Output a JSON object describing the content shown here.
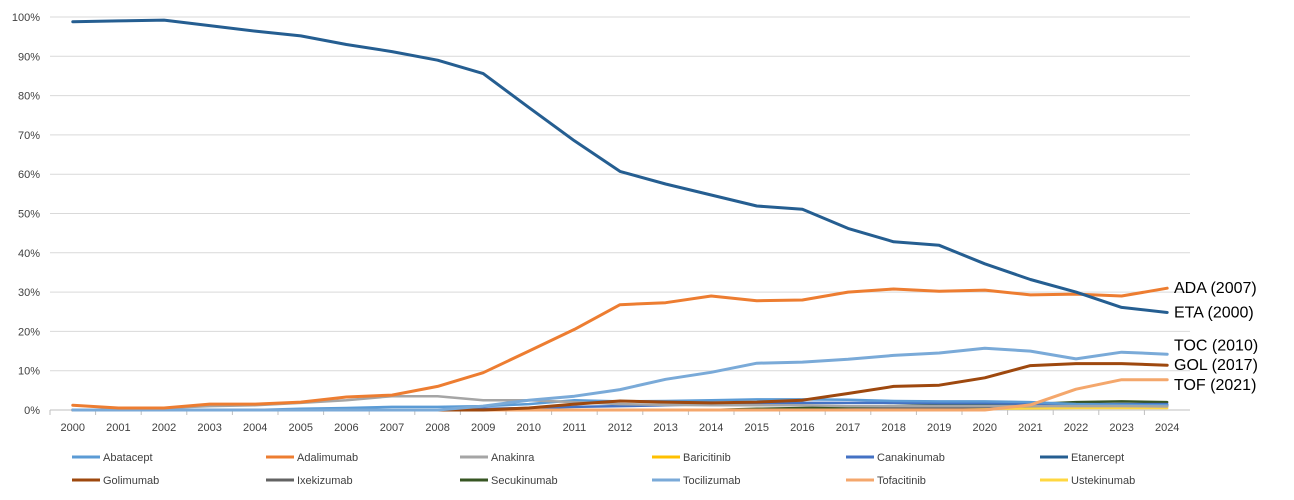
{
  "chart_data": {
    "type": "line",
    "title": "",
    "xlabel": "",
    "ylabel": "",
    "x": [
      "2000",
      "2001",
      "2002",
      "2003",
      "2004",
      "2005",
      "2006",
      "2007",
      "2008",
      "2009",
      "2010",
      "2011",
      "2012",
      "2013",
      "2014",
      "2015",
      "2016",
      "2017",
      "2018",
      "2019",
      "2020",
      "2021",
      "2022",
      "2023",
      "2024"
    ],
    "yticks": [
      "0%",
      "10%",
      "20%",
      "30%",
      "40%",
      "50%",
      "60%",
      "70%",
      "80%",
      "90%",
      "100%"
    ],
    "ylim": [
      0,
      100
    ],
    "grid": true,
    "legend_position": "bottom",
    "series": [
      {
        "name": "Abatacept",
        "color": "#5b9bd5",
        "values": [
          0,
          0,
          0,
          0,
          0,
          0.3,
          0.5,
          0.8,
          0.8,
          1.0,
          1.5,
          2.5,
          2.2,
          2.3,
          2.5,
          2.7,
          2.7,
          2.6,
          2.3,
          2.2,
          2.2,
          2.0,
          1.5,
          1.3,
          1.2
        ]
      },
      {
        "name": "Adalimumab",
        "color": "#ed7d31",
        "values": [
          1.2,
          0.5,
          0.5,
          1.5,
          1.5,
          2.0,
          3.3,
          3.8,
          6.0,
          9.5,
          15.0,
          20.5,
          26.8,
          27.3,
          29.0,
          27.8,
          28.0,
          30.0,
          30.8,
          30.2,
          30.5,
          29.3,
          29.5,
          29.0,
          31.0
        ]
      },
      {
        "name": "Anakinra",
        "color": "#a5a5a5",
        "values": [
          0,
          0,
          0.5,
          1.0,
          1.2,
          1.8,
          2.5,
          3.5,
          3.5,
          2.5,
          2.5,
          2.0,
          1.5,
          1.3,
          1.2,
          1.2,
          1.2,
          1.0,
          1.0,
          1.0,
          1.0,
          1.0,
          1.0,
          1.0,
          0.9
        ]
      },
      {
        "name": "Baricitinib",
        "color": "#ffc000",
        "values": [
          0,
          0,
          0,
          0,
          0,
          0,
          0,
          0,
          0,
          0,
          0,
          0,
          0,
          0,
          0,
          0,
          0,
          0.3,
          0.5,
          0.6,
          0.6,
          0.8,
          1.0,
          1.0,
          1.0
        ]
      },
      {
        "name": "Canakinumab",
        "color": "#4472c4",
        "values": [
          0,
          0,
          0,
          0,
          0,
          0,
          0,
          0,
          0,
          0.3,
          0.5,
          0.8,
          1.0,
          1.2,
          1.5,
          1.5,
          1.8,
          1.8,
          1.8,
          1.7,
          1.7,
          1.6,
          1.5,
          1.5,
          1.5
        ]
      },
      {
        "name": "Etanercept",
        "color": "#255e91",
        "values": [
          98.8,
          99.0,
          99.2,
          97.8,
          96.4,
          95.2,
          93.0,
          91.2,
          89.0,
          85.6,
          77.0,
          68.5,
          60.7,
          57.5,
          54.7,
          51.9,
          51.1,
          46.2,
          42.8,
          41.9,
          37.2,
          33.2,
          30.0,
          26.1,
          24.8
        ]
      },
      {
        "name": "Golimumab",
        "color": "#9e480e",
        "values": [
          0,
          0,
          0,
          0,
          0,
          0,
          0,
          0,
          0,
          0,
          0.5,
          1.5,
          2.3,
          2.0,
          1.8,
          2.0,
          2.5,
          4.2,
          6.0,
          6.3,
          8.2,
          11.3,
          11.8,
          11.8,
          11.4
        ]
      },
      {
        "name": "Ixekizumab",
        "color": "#636363",
        "values": [
          0,
          0,
          0,
          0,
          0,
          0,
          0,
          0,
          0,
          0,
          0,
          0,
          0,
          0,
          0,
          0,
          0,
          0.3,
          0.5,
          0.6,
          0.8,
          1.0,
          1.2,
          1.2,
          1.2
        ]
      },
      {
        "name": "Secukinumab",
        "color": "#375623",
        "values": [
          0,
          0,
          0,
          0,
          0,
          0,
          0,
          0,
          0,
          0,
          0,
          0,
          0,
          0,
          0,
          0.3,
          0.5,
          0.8,
          1.0,
          1.2,
          1.3,
          1.5,
          2.0,
          2.2,
          2.0
        ]
      },
      {
        "name": "Tocilizumab",
        "color": "#7aaad8",
        "values": [
          0,
          0,
          0,
          0,
          0,
          0,
          0,
          0,
          0,
          1.0,
          2.5,
          3.5,
          5.2,
          7.8,
          9.6,
          11.9,
          12.2,
          12.9,
          13.9,
          14.5,
          15.7,
          15.0,
          13.0,
          14.7,
          14.2
        ]
      },
      {
        "name": "Tofacitinib",
        "color": "#f4a76c",
        "values": [
          0,
          0,
          0,
          0,
          0,
          0,
          0,
          0,
          0,
          0,
          0,
          0,
          0,
          0,
          0,
          0,
          0,
          0,
          0,
          0,
          0,
          1.3,
          5.3,
          7.7,
          7.7
        ]
      },
      {
        "name": "Ustekinumab",
        "color": "#ffd740",
        "values": [
          0,
          0,
          0,
          0,
          0,
          0,
          0,
          0,
          0,
          0,
          0,
          0,
          0,
          0,
          0,
          0,
          0,
          0,
          0.2,
          0.3,
          0.3,
          0.4,
          0.5,
          0.5,
          0.5
        ]
      }
    ],
    "annotations": [
      {
        "text": "ADA (2007)",
        "value": 31.0
      },
      {
        "text": "ETA  (2000)",
        "value": 24.8
      },
      {
        "text": "TOC  (2010)",
        "value": 16.4
      },
      {
        "text": "GOL (2017)",
        "value": 11.4
      },
      {
        "text": "TOF  (2021)",
        "value": 6.4
      }
    ]
  }
}
